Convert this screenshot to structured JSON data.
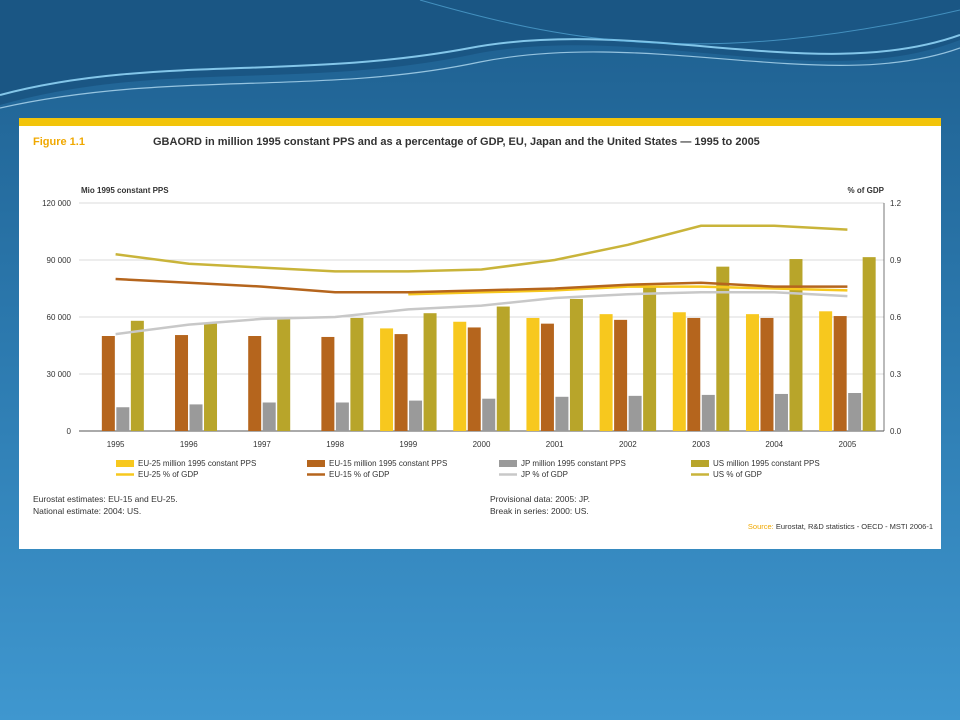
{
  "figure": {
    "label": "Figure 1.1",
    "title": "GBAORD in million 1995 constant PPS and as a percentage of GDP, EU, Japan and the United States — 1995 to 2005"
  },
  "notes": {
    "left_line1": "Eurostat estimates: EU-15 and EU-25.",
    "left_line2": "National estimate: 2004: US.",
    "right_line1": "Provisional data: 2005: JP.",
    "right_line2": "Break in series: 2000: US."
  },
  "source": {
    "label": "Source:",
    "text": "Eurostat, R&D statistics - OECD - MSTI 2006-1"
  },
  "colors": {
    "eu25": "#f7c81e",
    "eu15": "#b5651d",
    "jp": "#9a9a9a",
    "us": "#b8a52a",
    "eu25_line": "#f7c81e",
    "eu15_line": "#b5651d",
    "jp_line": "#c8c8c8",
    "us_line": "#c9b43a",
    "grid": "#cfcfcf"
  },
  "chart_data": {
    "type": "bar",
    "categories": [
      "1995",
      "1996",
      "1997",
      "1998",
      "1999",
      "2000",
      "2001",
      "2002",
      "2003",
      "2004",
      "2005"
    ],
    "yaxis_left": {
      "label": "Mio 1995 constant PPS",
      "range": [
        0,
        120000
      ],
      "ticks": [
        "0",
        "30 000",
        "60 000",
        "90 000",
        "120 000"
      ]
    },
    "yaxis_right": {
      "label": "% of GDP",
      "range": [
        0,
        1.2
      ],
      "ticks": [
        "0.0",
        "0.3",
        "0.6",
        "0.9",
        "1.2"
      ]
    },
    "grid": true,
    "legend_position": "bottom",
    "bar_series": [
      {
        "name": "EU-25 million 1995 constant PPS",
        "key": "eu25",
        "values": [
          null,
          null,
          null,
          null,
          54000,
          57500,
          59500,
          61500,
          62500,
          61500,
          63000
        ]
      },
      {
        "name": "EU-15 million 1995 constant PPS",
        "key": "eu15",
        "values": [
          50000,
          50500,
          50000,
          49500,
          51000,
          54500,
          56500,
          58500,
          59500,
          59500,
          60500
        ]
      },
      {
        "name": "JP million 1995 constant PPS",
        "key": "jp",
        "values": [
          12500,
          14000,
          15000,
          15000,
          16000,
          17000,
          18000,
          18500,
          19000,
          19500,
          20000
        ]
      },
      {
        "name": "US million 1995 constant PPS",
        "key": "us",
        "values": [
          58000,
          57000,
          59000,
          59500,
          62000,
          65500,
          69500,
          76000,
          86500,
          90500,
          91500
        ]
      }
    ],
    "line_series": [
      {
        "name": "EU-25 % of GDP",
        "key": "eu25_line",
        "values": [
          null,
          null,
          null,
          null,
          0.72,
          0.73,
          0.74,
          0.76,
          0.76,
          0.75,
          0.74
        ]
      },
      {
        "name": "EU-15 % of GDP",
        "key": "eu15_line",
        "values": [
          0.8,
          0.78,
          0.76,
          0.73,
          0.73,
          0.74,
          0.75,
          0.77,
          0.78,
          0.76,
          0.76
        ]
      },
      {
        "name": "JP % of GDP",
        "key": "jp_line",
        "values": [
          0.51,
          0.56,
          0.59,
          0.6,
          0.64,
          0.66,
          0.7,
          0.72,
          0.73,
          0.73,
          0.71
        ]
      },
      {
        "name": "US % of GDP",
        "key": "us_line",
        "values": [
          0.93,
          0.88,
          0.86,
          0.84,
          0.84,
          0.85,
          0.9,
          0.98,
          1.08,
          1.08,
          1.06
        ]
      }
    ],
    "legend_rows": [
      [
        "eu25",
        "eu15",
        "jp",
        "us"
      ],
      [
        "eu25_line",
        "eu15_line",
        "jp_line",
        "us_line"
      ]
    ]
  }
}
